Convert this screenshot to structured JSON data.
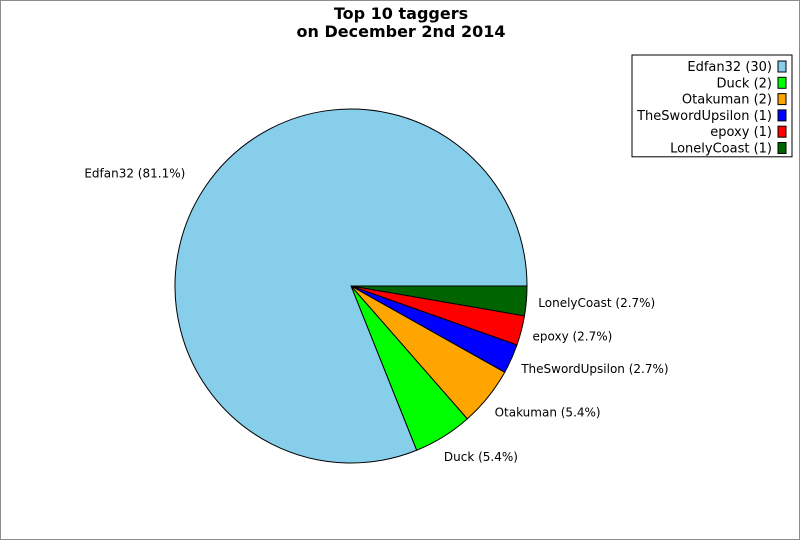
{
  "chart_data": {
    "type": "pie",
    "title_line1": "Top 10 taggers",
    "title_line2": "on December 2nd 2014",
    "slices": [
      {
        "label": "Edfan32",
        "value": 30,
        "percent_label": "Edfan32 (81.1%)",
        "legend_label": "Edfan32 (30)",
        "color": "#87ceeb"
      },
      {
        "label": "Duck",
        "value": 2,
        "percent_label": "Duck (5.4%)",
        "legend_label": "Duck (2)",
        "color": "#00ff00"
      },
      {
        "label": "Otakuman",
        "value": 2,
        "percent_label": "Otakuman (5.4%)",
        "legend_label": "Otakuman (2)",
        "color": "#ffa500"
      },
      {
        "label": "TheSwordUpsilon",
        "value": 1,
        "percent_label": "TheSwordUpsilon (2.7%)",
        "legend_label": "TheSwordUpsilon (1)",
        "color": "#0000ff"
      },
      {
        "label": "epoxy",
        "value": 1,
        "percent_label": "epoxy (2.7%)",
        "legend_label": "epoxy (1)",
        "color": "#ff0000"
      },
      {
        "label": "LonelyCoast",
        "value": 1,
        "percent_label": "LonelyCoast (2.7%)",
        "legend_label": "LonelyCoast (1)",
        "color": "#006400"
      }
    ],
    "legend_position": "top-right"
  }
}
